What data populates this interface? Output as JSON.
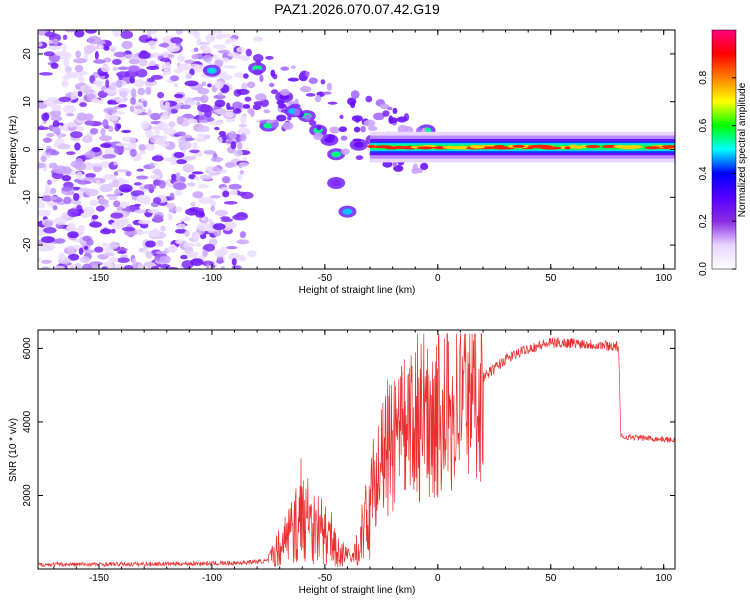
{
  "title": "PAZ1.2026.070.07.42.G19",
  "chart_data": [
    {
      "type": "heatmap",
      "name": "spectrogram",
      "xlabel": "Height of straight line (km)",
      "ylabel": "Frequency (Hz)",
      "xlim": [
        -177,
        105
      ],
      "ylim": [
        -25,
        25
      ],
      "xticks": [
        -150,
        -100,
        -50,
        0,
        50,
        100
      ],
      "yticks": [
        -20,
        -10,
        0,
        10,
        20
      ],
      "colorbar": {
        "label": "Normalized spectral amplitude",
        "range": [
          0,
          1
        ],
        "ticks": [
          0.0,
          0.2,
          0.4,
          0.6,
          0.8
        ],
        "colormap": [
          "#ffffff",
          "#e8d4ff",
          "#8a2be2",
          "#5500ff",
          "#0000ff",
          "#00ffff",
          "#00ff00",
          "#ffff00",
          "#ff8000",
          "#ff0000",
          "#ff0080"
        ]
      },
      "features": {
        "noise_region_x": [
          -177,
          -85
        ],
        "signal_center_hz": 0.5,
        "signal_start_km": -30,
        "signal_peak_amplitude": 0.95
      }
    },
    {
      "type": "line",
      "name": "snr",
      "xlabel": "Height of straight line (km)",
      "ylabel": "SNR (10 * v/v)",
      "xlim": [
        -177,
        105
      ],
      "ylim": [
        0,
        6500
      ],
      "xticks": [
        -150,
        -100,
        -50,
        0,
        50,
        100
      ],
      "yticks": [
        2000,
        4000,
        6000
      ],
      "color": "#e83030",
      "profile": [
        [
          -177,
          120
        ],
        [
          -120,
          140
        ],
        [
          -90,
          160
        ],
        [
          -75,
          220
        ],
        [
          -68,
          800
        ],
        [
          -60,
          1400
        ],
        [
          -52,
          1100
        ],
        [
          -45,
          500
        ],
        [
          -38,
          250
        ],
        [
          -32,
          1200
        ],
        [
          -28,
          2500
        ],
        [
          -22,
          3200
        ],
        [
          -15,
          3600
        ],
        [
          -8,
          4000
        ],
        [
          0,
          4300
        ],
        [
          10,
          4700
        ],
        [
          20,
          5200
        ],
        [
          30,
          5700
        ],
        [
          40,
          6000
        ],
        [
          50,
          6150
        ],
        [
          60,
          6150
        ],
        [
          70,
          6100
        ],
        [
          80,
          6050
        ],
        [
          81,
          3600
        ],
        [
          95,
          3550
        ],
        [
          105,
          3500
        ]
      ]
    }
  ]
}
